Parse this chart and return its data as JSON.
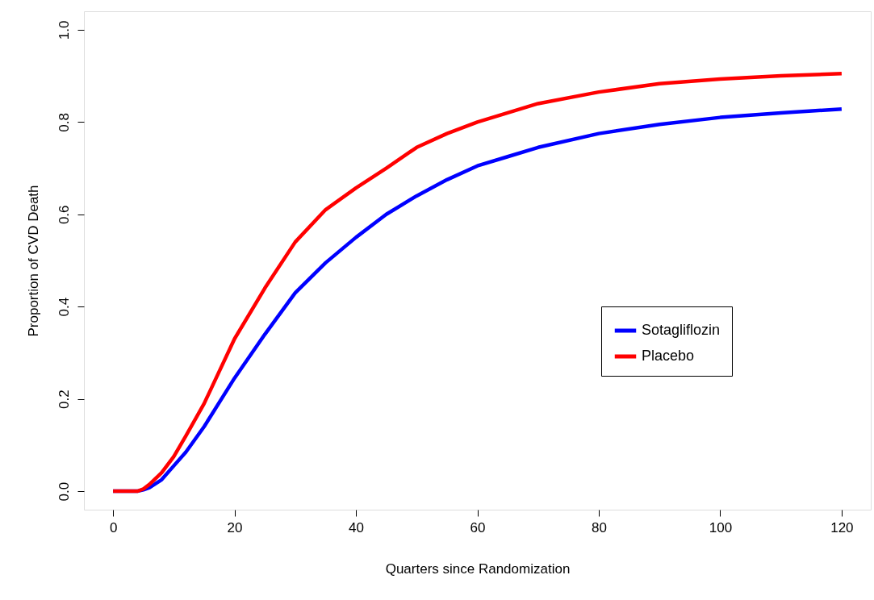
{
  "chart_data": {
    "type": "line",
    "xlabel": "Quarters since Randomization",
    "ylabel": "Proportion of CVD Death",
    "xlim": [
      -4.8,
      124.8
    ],
    "ylim": [
      -0.04,
      1.04
    ],
    "xticks": [
      0,
      20,
      40,
      60,
      80,
      100,
      120
    ],
    "yticks": [
      {
        "value": 0,
        "label": "0.0"
      },
      {
        "value": 0.2,
        "label": "0.2"
      },
      {
        "value": 0.4,
        "label": "0.4"
      },
      {
        "value": 0.6,
        "label": "0.6"
      },
      {
        "value": 0.8,
        "label": "0.8"
      },
      {
        "value": 1,
        "label": "1.0"
      }
    ],
    "grid": false,
    "legend": "right",
    "line_style": "solid",
    "marker": "none",
    "x": [
      0,
      4,
      5,
      6,
      8,
      10,
      12,
      15,
      20,
      25,
      30,
      35,
      40,
      45,
      50,
      55,
      60,
      65,
      70,
      80,
      90,
      100,
      110,
      120
    ],
    "series": [
      {
        "name": "Sotagliflozin",
        "color": "#0000ff",
        "values": [
          0,
          0,
          0.003,
          0.008,
          0.025,
          0.055,
          0.085,
          0.14,
          0.245,
          0.34,
          0.43,
          0.495,
          0.55,
          0.6,
          0.64,
          0.675,
          0.705,
          0.725,
          0.745,
          0.775,
          0.795,
          0.81,
          0.82,
          0.828
        ]
      },
      {
        "name": "Placebo",
        "color": "#ff0000",
        "values": [
          0,
          0,
          0.005,
          0.015,
          0.04,
          0.075,
          0.12,
          0.19,
          0.33,
          0.44,
          0.54,
          0.61,
          0.657,
          0.7,
          0.745,
          0.775,
          0.8,
          0.82,
          0.84,
          0.865,
          0.883,
          0.893,
          0.9,
          0.905
        ]
      }
    ]
  }
}
